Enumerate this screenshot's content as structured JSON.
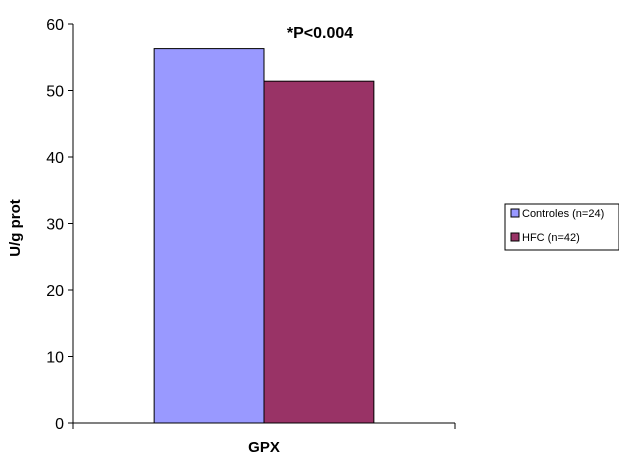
{
  "chart_data": {
    "type": "bar",
    "categories": [
      "GPX"
    ],
    "series": [
      {
        "name": "Controles (n=24)",
        "values": [
          56.3
        ],
        "color": "#9999ff"
      },
      {
        "name": "HFC (n=42)",
        "values": [
          51.4
        ],
        "color": "#993366"
      }
    ],
    "xlabel": "GPX",
    "ylabel": "U/g prot",
    "ylim": [
      0,
      60
    ],
    "yticks": [
      "0",
      "10",
      "20",
      "30",
      "40",
      "50",
      "60"
    ],
    "annotation": "*P<0.004",
    "grid": false,
    "legend_position": "right"
  }
}
